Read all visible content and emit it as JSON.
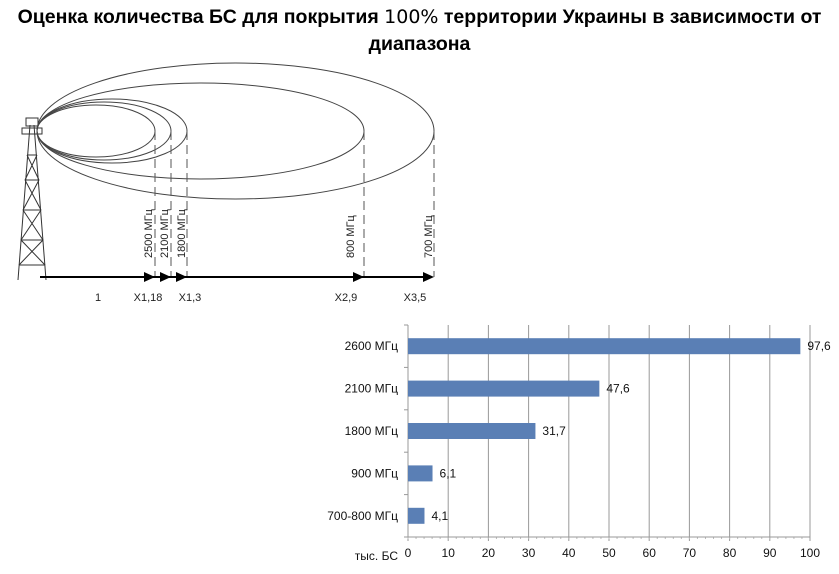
{
  "title": {
    "part1": "Оценка количества БС для покрытия ",
    "pct": "100%",
    "part2": " территории Украины в зависимости от",
    "line2": "диапазона"
  },
  "diagram": {
    "bands": [
      {
        "label": "2500 МГц"
      },
      {
        "label": "2100 МГц"
      },
      {
        "label": "1800 МГц"
      },
      {
        "label": "800 МГц"
      },
      {
        "label": "700 МГц"
      }
    ],
    "axis_labels": [
      "1",
      "X1,18",
      "X1,3",
      "X2,9",
      "X3,5"
    ]
  },
  "chart_data": {
    "type": "bar",
    "orientation": "horizontal",
    "categories": [
      "2600 МГц",
      "2100 МГц",
      "1800 МГц",
      "900 МГц",
      "700-800 МГц"
    ],
    "values": [
      97.6,
      47.6,
      31.7,
      6.1,
      4.1
    ],
    "value_labels": [
      "97,6",
      "47,6",
      "31,7",
      "6,1",
      "4,1"
    ],
    "xlabel": "тыс. БС",
    "xlim": [
      0,
      100
    ],
    "xticks": [
      "0",
      "10",
      "20",
      "30",
      "40",
      "50",
      "60",
      "70",
      "80",
      "90",
      "100"
    ],
    "grid": true,
    "color": "#5a7fb5"
  }
}
